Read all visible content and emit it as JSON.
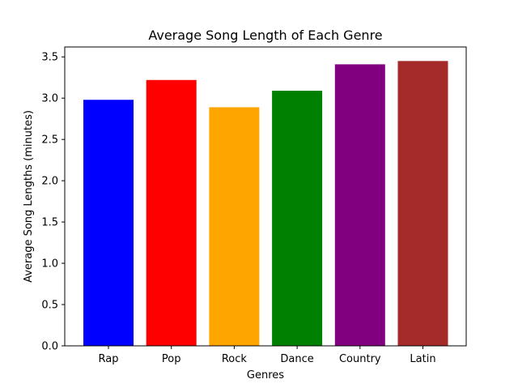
{
  "chart_data": {
    "type": "bar",
    "title": "Average Song Length of Each Genre",
    "xlabel": "Genres",
    "ylabel": "Average Song Lengths (minutes)",
    "categories": [
      "Rap",
      "Pop",
      "Rock",
      "Dance",
      "Country",
      "Latin"
    ],
    "values": [
      2.98,
      3.22,
      2.89,
      3.09,
      3.41,
      3.45
    ],
    "colors": [
      "#0000ff",
      "#ff0000",
      "#ffa500",
      "#008000",
      "#800080",
      "#a52a2a"
    ],
    "ylim": [
      0,
      3.62
    ],
    "yticks": [
      "0.0",
      "0.5",
      "1.0",
      "1.5",
      "2.0",
      "2.5",
      "3.0",
      "3.5"
    ],
    "grid": false,
    "legend": "none"
  }
}
